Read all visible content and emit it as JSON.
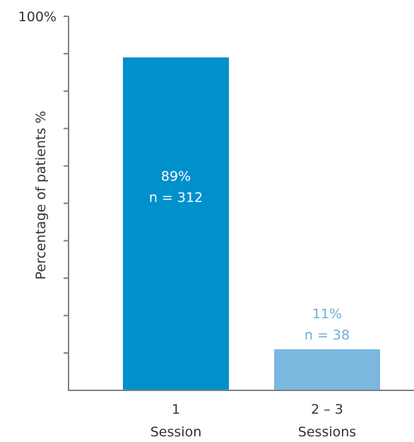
{
  "chart_data": {
    "type": "bar",
    "ylabel": "Percentage of patients %",
    "ymax_label": "100%",
    "ylim": [
      0,
      100
    ],
    "minor_ticks": 10,
    "grid": false,
    "categories": [
      {
        "line1": "1",
        "line2": "Session"
      },
      {
        "line1": "2 – 3",
        "line2": "Sessions"
      }
    ],
    "values": [
      89,
      11
    ],
    "value_labels": [
      "89%",
      "11%"
    ],
    "n_labels": [
      "n = 312",
      "n = 38"
    ],
    "bar_colors": [
      "#0090cc",
      "#7ab8e0"
    ],
    "label_colors": [
      "#ffffff",
      "#6aaedc"
    ],
    "label_position": [
      "inside",
      "above"
    ]
  }
}
